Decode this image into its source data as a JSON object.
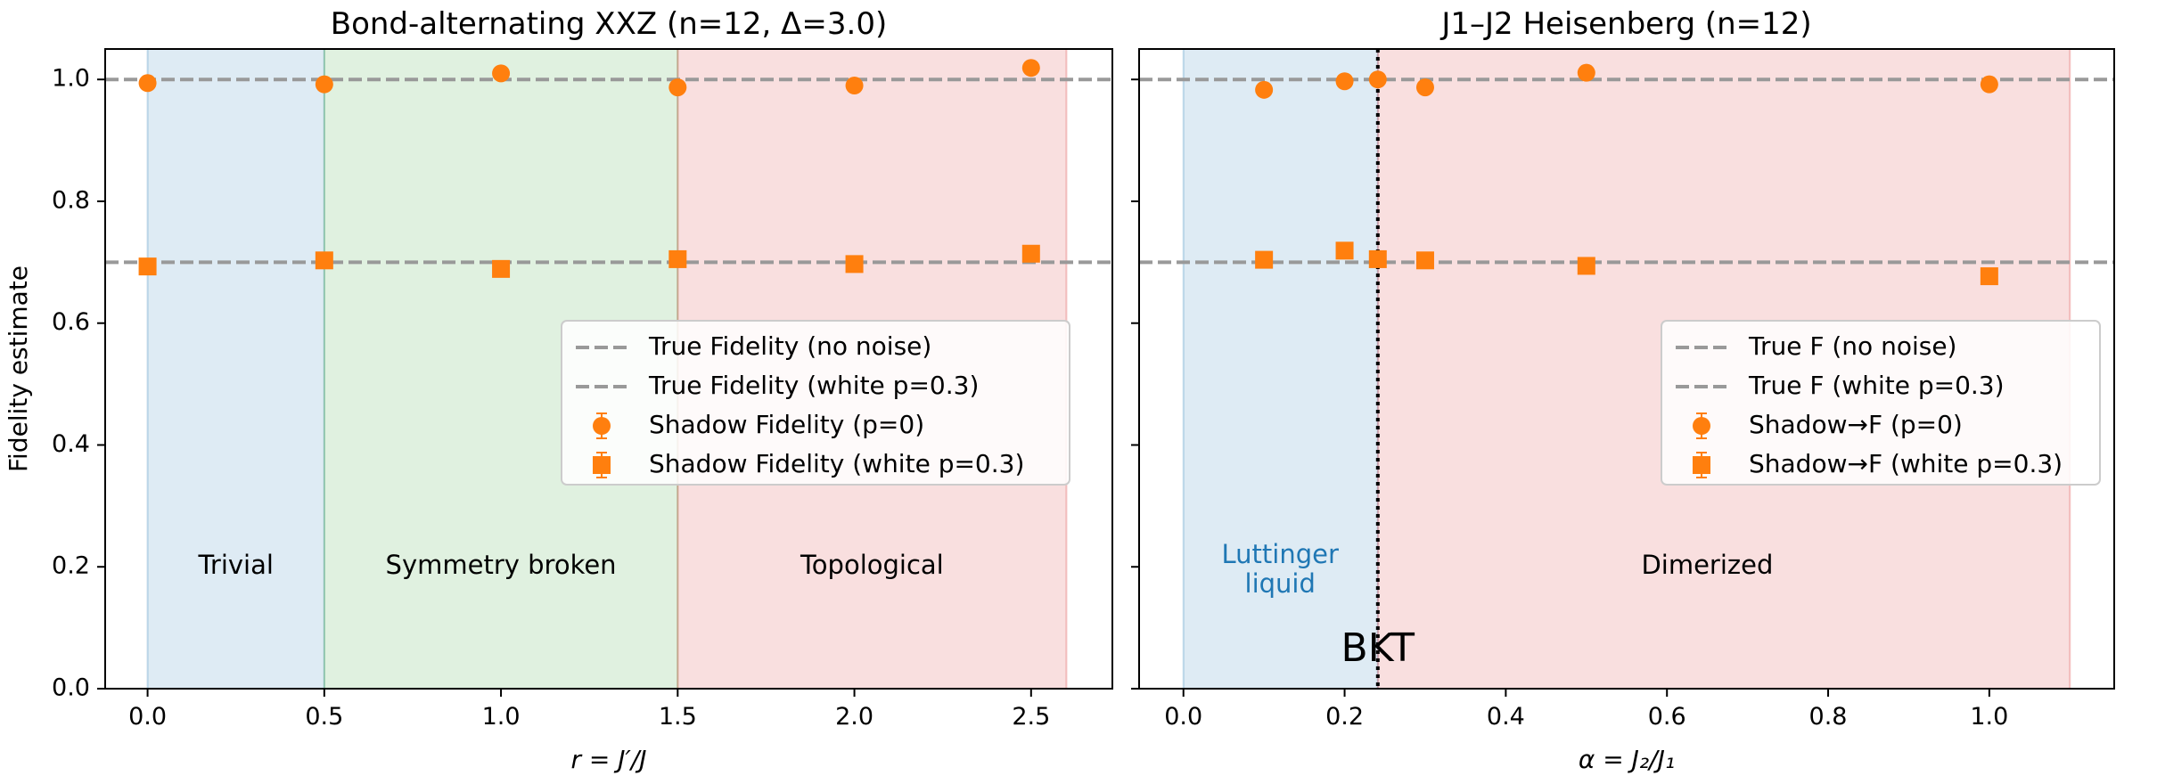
{
  "chart_data": [
    {
      "type": "scatter",
      "title": "Bond-alternating XXZ (n=12, Δ=3.0)",
      "xlabel": "r = J′/J",
      "xlabel_main": "r",
      "xlabel_rest": " = J′/J",
      "ylabel": "Fidelity estimate",
      "xlim": [
        -0.12,
        2.73
      ],
      "ylim": [
        0.0,
        1.05
      ],
      "xticks": [
        0.0,
        0.5,
        1.0,
        1.5,
        2.0,
        2.5
      ],
      "xtick_labels": [
        "0.0",
        "0.5",
        "1.0",
        "1.5",
        "2.0",
        "2.5"
      ],
      "yticks": [
        0.0,
        0.2,
        0.4,
        0.6,
        0.8,
        1.0
      ],
      "ytick_labels": [
        "0.0",
        "0.2",
        "0.4",
        "0.6",
        "0.8",
        "1.0"
      ],
      "reference_lines": [
        {
          "name": "True Fidelity (no noise)",
          "y": 1.0
        },
        {
          "name": "True Fidelity (white p=0.3)",
          "y": 0.7
        }
      ],
      "regions": [
        {
          "name": "Trivial",
          "x0": 0.0,
          "x1": 0.5,
          "color": "#1f77b4",
          "label_x": 0.25,
          "label_y": 0.2,
          "lines": [
            "Trivial"
          ]
        },
        {
          "name": "Symmetry broken",
          "x0": 0.5,
          "x1": 1.5,
          "color": "#2ca02c",
          "label_x": 1.0,
          "label_y": 0.2,
          "lines": [
            "Symmetry broken"
          ]
        },
        {
          "name": "Topological",
          "x0": 1.5,
          "x1": 2.6,
          "color": "#d62728",
          "label_x": 2.05,
          "label_y": 0.2,
          "lines": [
            "Topological"
          ]
        }
      ],
      "series": [
        {
          "name": "Shadow Fidelity (p=0)",
          "marker": "circle",
          "x": [
            0.0,
            0.5,
            1.0,
            1.5,
            2.0,
            2.5
          ],
          "y": [
            0.994,
            0.992,
            1.01,
            0.987,
            0.99,
            1.019
          ]
        },
        {
          "name": "Shadow Fidelity (white p=0.3)",
          "marker": "square",
          "x": [
            0.0,
            0.5,
            1.0,
            1.5,
            2.0,
            2.5
          ],
          "y": [
            0.693,
            0.703,
            0.689,
            0.705,
            0.697,
            0.714
          ]
        }
      ],
      "legend": {
        "location": "center-right",
        "entries": [
          {
            "label": "True Fidelity (no noise)",
            "kind": "dash"
          },
          {
            "label": "True Fidelity (white p=0.3)",
            "kind": "dash"
          },
          {
            "label": "Shadow Fidelity (p=0)",
            "kind": "circle"
          },
          {
            "label": "Shadow Fidelity (white p=0.3)",
            "kind": "square"
          }
        ]
      }
    },
    {
      "type": "scatter",
      "title": "J1–J2 Heisenberg (n=12)",
      "xlabel": "α = J₂/J₁",
      "xlabel_main": "α",
      "xlabel_rest": " = J₂/J₁",
      "ylabel": "",
      "xlim": [
        -0.055,
        1.155
      ],
      "ylim": [
        0.0,
        1.05
      ],
      "xticks": [
        0.0,
        0.2,
        0.4,
        0.6,
        0.8,
        1.0
      ],
      "xtick_labels": [
        "0.0",
        "0.2",
        "0.4",
        "0.6",
        "0.8",
        "1.0"
      ],
      "yticks": [
        0.0,
        0.2,
        0.4,
        0.6,
        0.8,
        1.0
      ],
      "ytick_labels": [
        "",
        "",
        "",
        "",
        "",
        ""
      ],
      "reference_lines": [
        {
          "name": "True F (no noise)",
          "y": 1.0
        },
        {
          "name": "True F (white p=0.3)",
          "y": 0.7
        }
      ],
      "regions": [
        {
          "name": "Luttinger liquid",
          "x0": 0.0,
          "x1": 0.2412,
          "color": "#1f77b4",
          "label_x": 0.12,
          "label_y": 0.2,
          "lines": [
            "Luttinger",
            "liquid"
          ]
        },
        {
          "name": "Dimerized",
          "x0": 0.2412,
          "x1": 1.1,
          "color": "#d62728",
          "label_x": 0.65,
          "label_y": 0.2,
          "lines": [
            "Dimerized"
          ]
        }
      ],
      "vertical_line": {
        "x": 0.2412,
        "label": "BKT",
        "label_y": 0.045
      },
      "series": [
        {
          "name": "Shadow→F (p=0)",
          "marker": "circle",
          "x": [
            0.1,
            0.2,
            0.2412,
            0.3,
            0.5,
            1.0
          ],
          "y": [
            0.983,
            0.997,
            1.0,
            0.987,
            1.011,
            0.992
          ]
        },
        {
          "name": "Shadow→F (white p=0.3)",
          "marker": "square",
          "x": [
            0.1,
            0.2,
            0.2412,
            0.3,
            0.5,
            1.0
          ],
          "y": [
            0.704,
            0.719,
            0.705,
            0.703,
            0.694,
            0.677
          ]
        }
      ],
      "legend": {
        "location": "center-right",
        "entries": [
          {
            "label": "True F (no noise)",
            "kind": "dash"
          },
          {
            "label": "True F (white p=0.3)",
            "kind": "dash"
          },
          {
            "label": "Shadow→F (p=0)",
            "kind": "circle"
          },
          {
            "label": "Shadow→F (white p=0.3)",
            "kind": "square"
          }
        ]
      }
    }
  ],
  "colors": {
    "marker": "#ff7f0e",
    "reference": "#999999",
    "axis": "#000000"
  }
}
